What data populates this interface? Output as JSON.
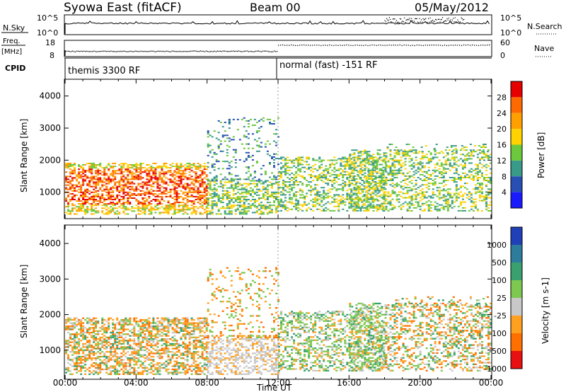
{
  "header": {
    "station": "Syowa East (fitACF)",
    "beam": "Beam 00",
    "date": "05/May/2012"
  },
  "panel_labels": {
    "nsky": "N.Sky",
    "nsearch": "N.Search",
    "freq": "Freq.",
    "freq_unit": "[MHz]",
    "nave": "Nave",
    "cpid": "CPID"
  },
  "cpid_modes": [
    {
      "label": "themis 3300 RF",
      "start_hour": 0
    },
    {
      "label": "normal (fast) -151 RF",
      "start_hour": 12
    }
  ],
  "chart_data": [
    {
      "type": "line",
      "name": "noise",
      "series": [
        {
          "name": "N.Sky"
        },
        {
          "name": "N.Search"
        }
      ],
      "y_left_ticks": [
        "10^5",
        "10^0"
      ],
      "y_right_ticks": [
        "10^5",
        "10^0"
      ]
    },
    {
      "type": "scatter",
      "name": "frequency-nave",
      "series": [
        {
          "name": "Freq.",
          "x_range": [
            0,
            12
          ],
          "value": 11.5,
          "unit": "MHz"
        },
        {
          "name": "Nave",
          "x_range": [
            12,
            24
          ],
          "value": 47
        }
      ],
      "y_left_ticks": [
        "18",
        "8"
      ],
      "y_right_ticks": [
        "60",
        "0"
      ]
    },
    {
      "type": "heatmap",
      "name": "power",
      "ylabel": "Slant Range [km]",
      "ylim": [
        200,
        4500
      ],
      "y_ticks": [
        1000,
        2000,
        3000,
        4000
      ],
      "colorbar": {
        "label": "Power [dB]",
        "ticks": [
          "4",
          "8",
          "12",
          "16",
          "20",
          "24",
          "28"
        ],
        "colors": [
          "#1a1aff",
          "#2850b4",
          "#3a9a8a",
          "#6cc83c",
          "#ffd200",
          "#ffa000",
          "#ff6a00",
          "#e60000"
        ]
      }
    },
    {
      "type": "heatmap",
      "name": "velocity",
      "ylabel": "Slant Range [km]",
      "ylim": [
        200,
        4500
      ],
      "y_ticks": [
        1000,
        2000,
        3000,
        4000
      ],
      "colorbar": {
        "label": "Velocity [m s-1]",
        "ticks": [
          "1000",
          "500",
          "100",
          "25",
          "-25",
          "-100",
          "-500",
          "-1000"
        ],
        "colors": [
          "#2040b8",
          "#2e7c9c",
          "#3aa070",
          "#7cc850",
          "#c8c8c8",
          "#ffa020",
          "#ff7000",
          "#e81010"
        ]
      }
    }
  ],
  "xaxis": {
    "label": "Time UT",
    "ticks": [
      "00:00",
      "04:00",
      "08:00",
      "12:00",
      "16:00",
      "20:00",
      "00:00"
    ],
    "range_hours": [
      0,
      24
    ]
  }
}
